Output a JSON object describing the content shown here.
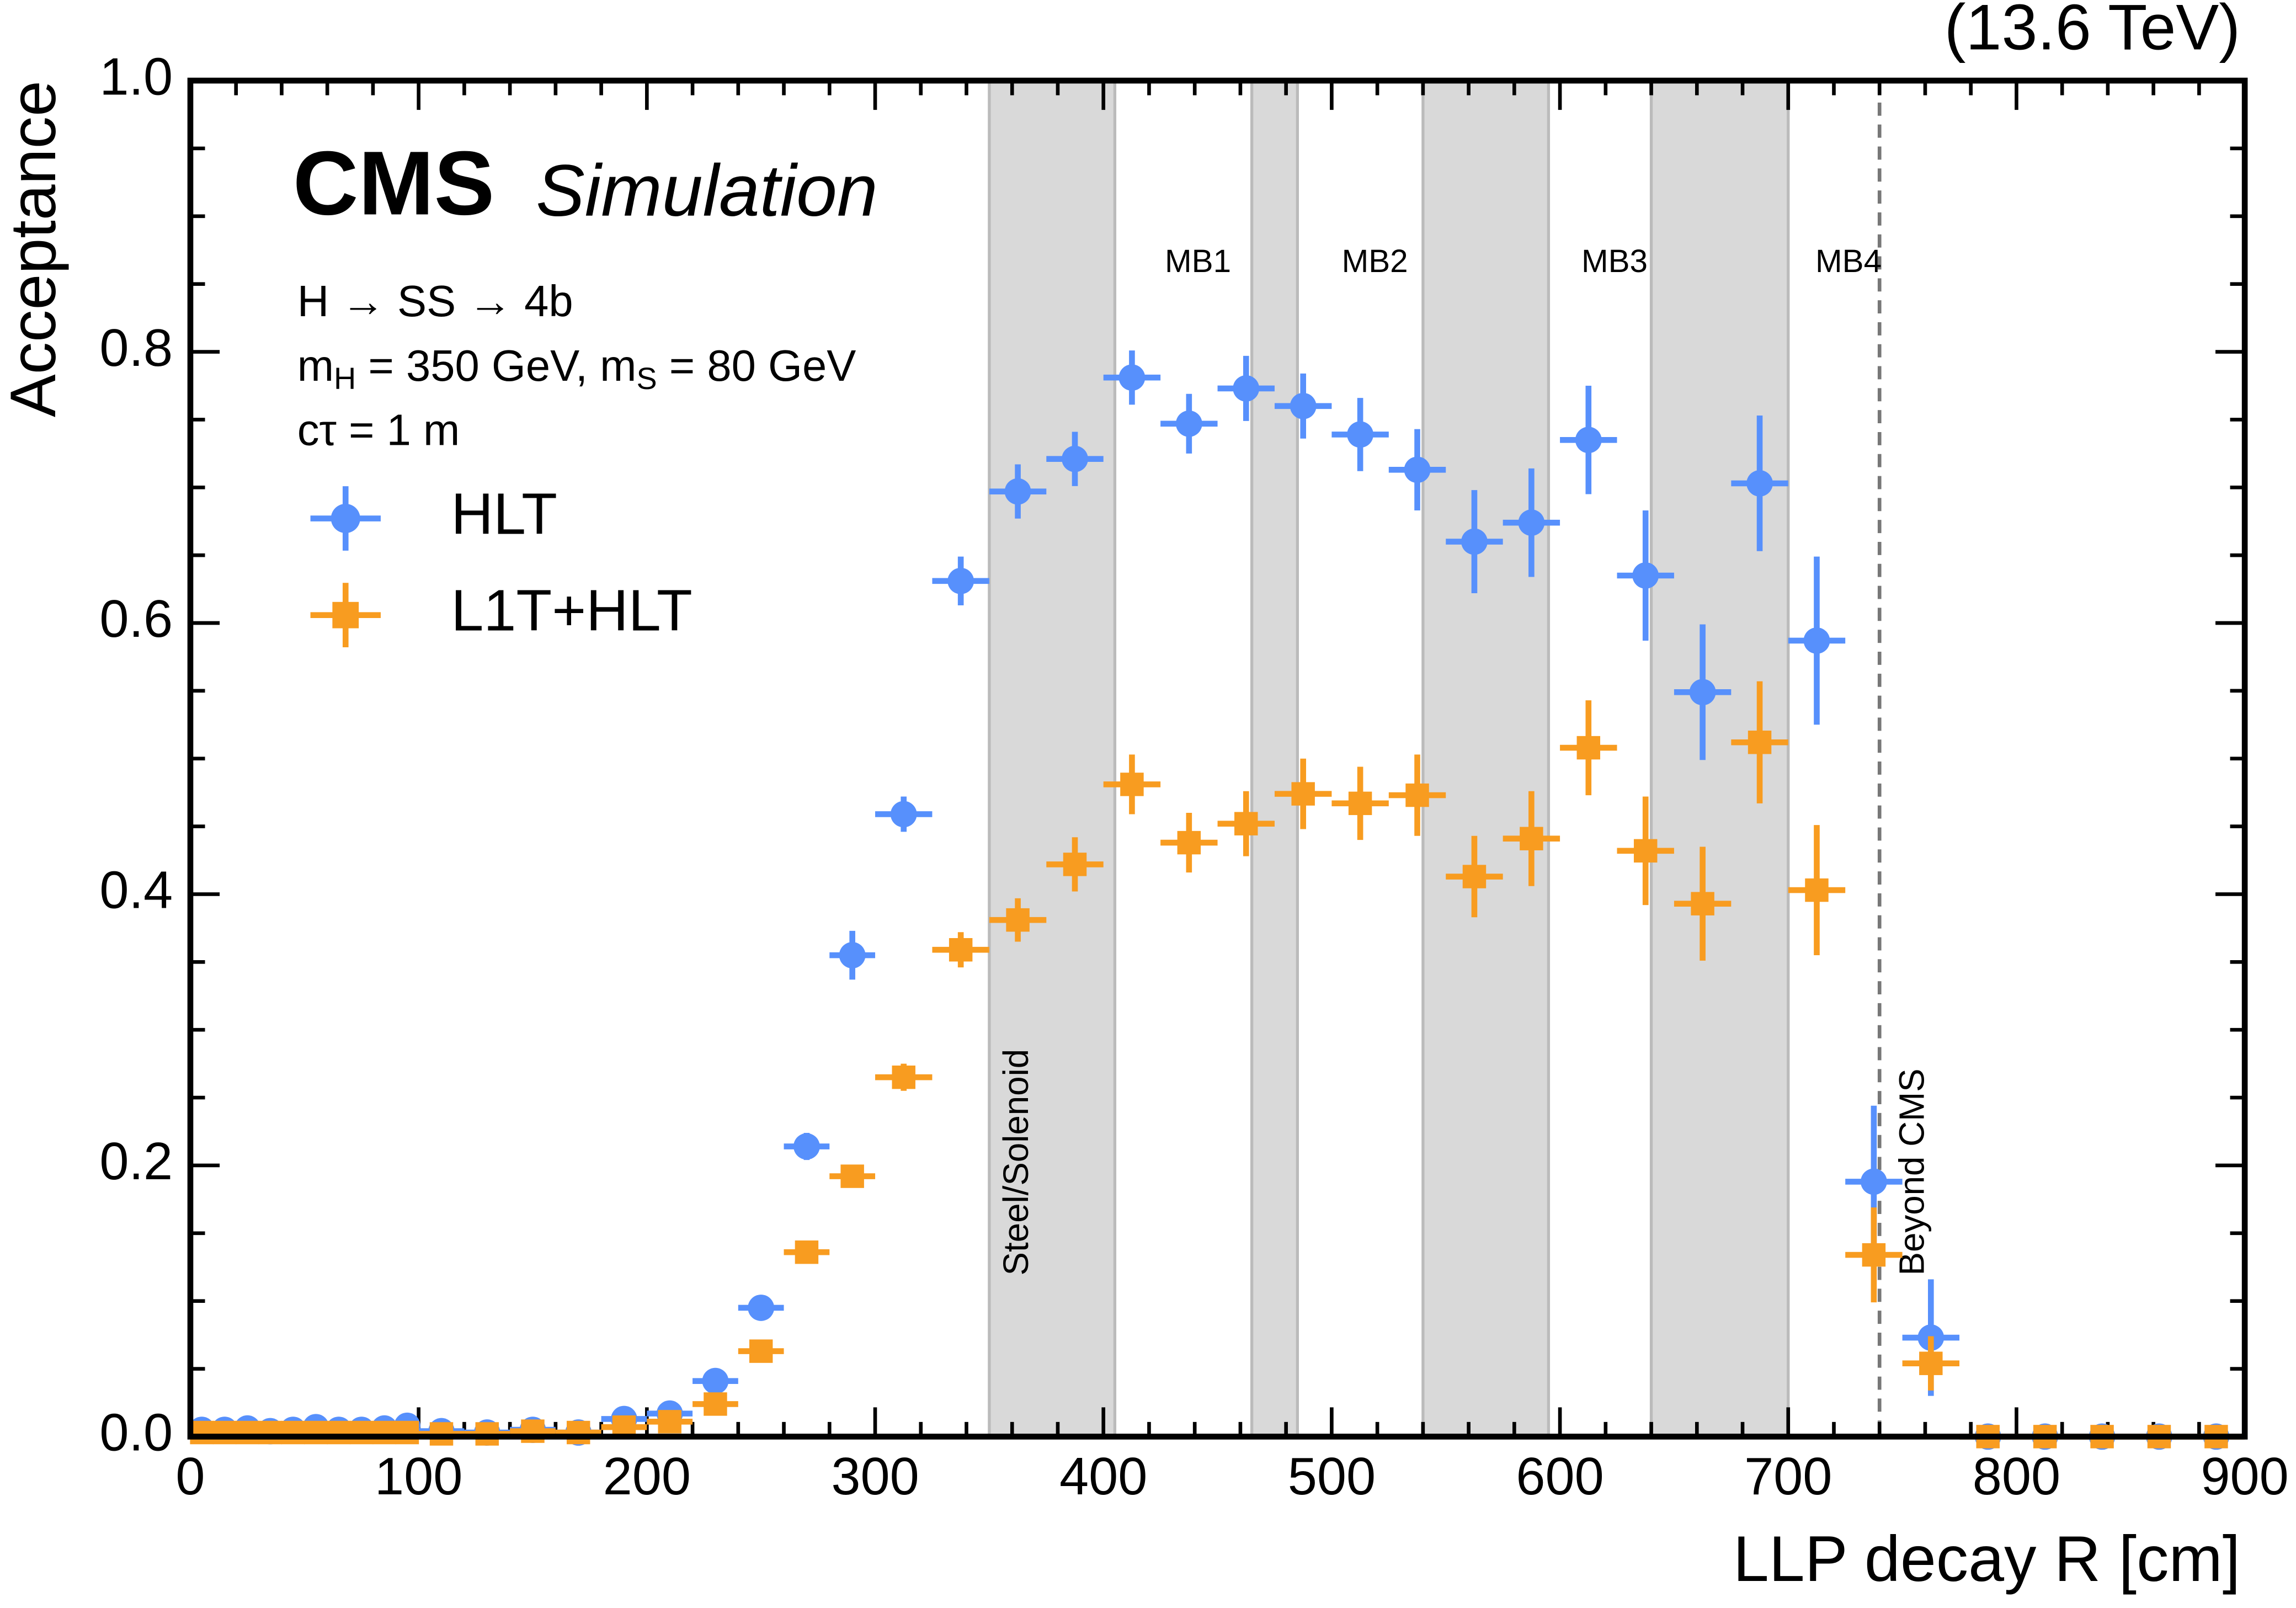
{
  "chart_data": {
    "type": "scatter",
    "title": "(13.6 TeV)",
    "experiment": "CMS",
    "status": "Simulation",
    "info_lines": [
      [
        "H → SS → 4b"
      ],
      [
        "m",
        {
          "sub": "H"
        },
        " = 350 GeV, m",
        {
          "sub": "S"
        },
        " = 80 GeV"
      ],
      [
        "cτ = 1 m"
      ]
    ],
    "x_label": "LLP decay R [cm]",
    "y_label": "Acceptance",
    "x": [
      5,
      15,
      25,
      35,
      45,
      55,
      65,
      75,
      85,
      95,
      110,
      130,
      150,
      170,
      190,
      210,
      230,
      250,
      270,
      290,
      312.5,
      337.5,
      362.5,
      387.5,
      412.5,
      437.5,
      462.5,
      487.5,
      512.5,
      537.5,
      562.5,
      587.5,
      612.5,
      637.5,
      662.5,
      687.5,
      712.5,
      737.5,
      762.5,
      787.5,
      812.5,
      837.5,
      862.5,
      887.5
    ],
    "x_err": [
      5,
      5,
      5,
      5,
      5,
      5,
      5,
      5,
      5,
      5,
      10,
      10,
      10,
      10,
      10,
      10,
      10,
      10,
      10,
      10,
      12.5,
      12.5,
      12.5,
      12.5,
      12.5,
      12.5,
      12.5,
      12.5,
      12.5,
      12.5,
      12.5,
      12.5,
      12.5,
      12.5,
      12.5,
      12.5,
      12.5,
      12.5,
      12.5,
      12.5,
      12.5,
      12.5,
      12.5,
      12.5
    ],
    "series": [
      {
        "name": "HLT",
        "color": "#5790fc",
        "marker": "circle",
        "values": [
          0.005,
          0.005,
          0.006,
          0.004,
          0.005,
          0.007,
          0.005,
          0.005,
          0.006,
          0.008,
          0.004,
          0.003,
          0.005,
          0.003,
          0.013,
          0.017,
          0.041,
          0.095,
          0.214,
          0.355,
          0.459,
          0.631,
          0.697,
          0.721,
          0.781,
          0.747,
          0.773,
          0.76,
          0.739,
          0.713,
          0.66,
          0.674,
          0.735,
          0.635,
          0.549,
          0.703,
          0.587,
          0.188,
          0.073,
          0,
          0,
          0,
          0,
          0
        ],
        "errors": [
          0.003,
          0.003,
          0.003,
          0.003,
          0.003,
          0.003,
          0.003,
          0.003,
          0.003,
          0.003,
          0.002,
          0.002,
          0.002,
          0.002,
          0.004,
          0.004,
          0.005,
          0.006,
          0.01,
          0.018,
          0.013,
          0.018,
          0.02,
          0.02,
          0.02,
          0.022,
          0.024,
          0.024,
          0.027,
          0.03,
          0.038,
          0.04,
          0.04,
          0.048,
          0.05,
          0.05,
          0.062,
          0.056,
          0.043,
          0,
          0,
          0,
          0,
          0
        ]
      },
      {
        "name": "L1T+HLT",
        "color": "#f89c20",
        "marker": "square",
        "values": [
          0.003,
          0.003,
          0.003,
          0.003,
          0.003,
          0.003,
          0.003,
          0.003,
          0.003,
          0.003,
          0.002,
          0.002,
          0.004,
          0.003,
          0.007,
          0.011,
          0.024,
          0.063,
          0.136,
          0.192,
          0.265,
          0.359,
          0.381,
          0.422,
          0.481,
          0.438,
          0.452,
          0.474,
          0.467,
          0.473,
          0.413,
          0.441,
          0.508,
          0.432,
          0.393,
          0.512,
          0.403,
          0.134,
          0.054,
          0,
          0,
          0,
          0,
          0
        ],
        "errors": [
          0.002,
          0.002,
          0.002,
          0.002,
          0.002,
          0.002,
          0.002,
          0.002,
          0.002,
          0.002,
          0.002,
          0.002,
          0.002,
          0.002,
          0.003,
          0.003,
          0.004,
          0.005,
          0.006,
          0.008,
          0.01,
          0.013,
          0.016,
          0.02,
          0.022,
          0.022,
          0.024,
          0.026,
          0.027,
          0.03,
          0.03,
          0.035,
          0.035,
          0.04,
          0.042,
          0.045,
          0.048,
          0.035,
          0.02,
          0,
          0,
          0,
          0,
          0
        ]
      }
    ],
    "xlim": [
      0,
      900
    ],
    "ylim": [
      0,
      1
    ],
    "xticks": [
      0,
      100,
      200,
      300,
      400,
      500,
      600,
      700,
      800,
      900
    ],
    "yticks": [
      {
        "value": 0,
        "label": "0.0"
      },
      0.2,
      0.4,
      0.6,
      0.8,
      {
        "value": 1,
        "label": "1.0"
      }
    ],
    "xticks_minor": [
      20,
      40,
      60,
      80,
      120,
      140,
      160,
      180,
      220,
      240,
      260,
      280,
      320,
      340,
      360,
      380,
      420,
      440,
      460,
      480,
      520,
      540,
      560,
      580,
      620,
      640,
      660,
      680,
      720,
      740,
      760,
      780,
      820,
      840,
      860,
      880
    ],
    "yticks_minor": [
      0.05,
      0.1,
      0.15,
      0.25,
      0.3,
      0.35,
      0.45,
      0.5,
      0.55,
      0.65,
      0.7,
      0.75,
      0.85,
      0.9,
      0.95
    ],
    "shaded_regions": [
      [
        350,
        405
      ],
      [
        465,
        485
      ],
      [
        540,
        595
      ],
      [
        640,
        700
      ]
    ],
    "region_labels": [
      "Steel/Solenoid",
      "MB1",
      "MB2",
      "MB3",
      "MB4"
    ],
    "boundary": {
      "x": 740,
      "label": "Beyond CMS"
    },
    "legend": "upper left"
  }
}
